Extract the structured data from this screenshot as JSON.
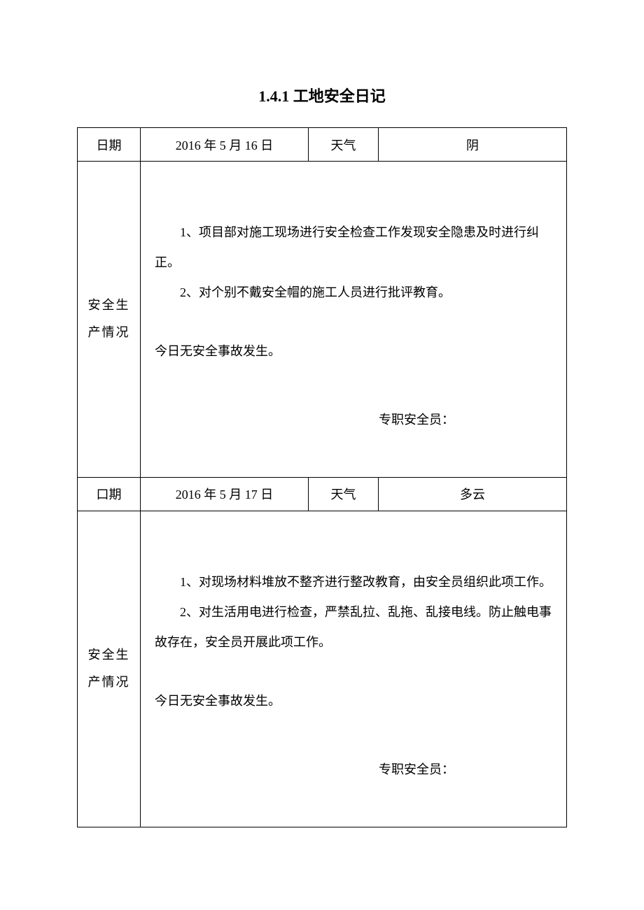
{
  "document": {
    "title": "1.4.1 工地安全日记",
    "colors": {
      "text": "#000000",
      "background": "#ffffff",
      "border": "#000000"
    },
    "typography": {
      "title_fontsize": 22,
      "body_fontsize": 18,
      "font_family": "SimSun"
    },
    "entries": [
      {
        "date_label": "日期",
        "date_value": "2016 年 5 月 16 日",
        "weather_label": "天气",
        "weather_value": "阴",
        "side_label": "安全生产情况",
        "items": [
          "1、项目部对施工现场进行安全检查工作发现安全隐患及时进行纠正。",
          "2、对个别不戴安全帽的施工人员进行批评教育。"
        ],
        "no_accident": "今日无安全事故发生。",
        "signature_label": "专职安全员："
      },
      {
        "date_label": "口期",
        "date_value": "2016 年 5 月 17 日",
        "weather_label": "天气",
        "weather_value": "多云",
        "side_label": "安全生产情况",
        "items": [
          "1、对现场材料堆放不整齐进行整改教育，由安全员组织此项工作。",
          "2、对生活用电进行检查，严禁乱拉、乱拖、乱接电线。防止触电事故存在，安全员开展此项工作。"
        ],
        "no_accident": "今日无安全事故发生。",
        "signature_label": "专职安全员："
      }
    ]
  }
}
